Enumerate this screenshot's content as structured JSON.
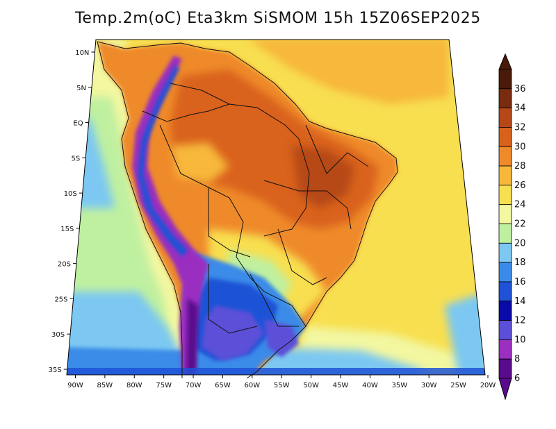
{
  "title": "Temp.2m(oC) Eta3km SiSMOM 15h 15Z06SEP2025",
  "map": {
    "lon_range": [
      -91,
      -20
    ],
    "lat_range": [
      -38,
      12
    ],
    "lon_ticks": [
      {
        "v": -90,
        "label": "90W"
      },
      {
        "v": -85,
        "label": "85W"
      },
      {
        "v": -80,
        "label": "80W"
      },
      {
        "v": -75,
        "label": "75W"
      },
      {
        "v": -70,
        "label": "70W"
      },
      {
        "v": -65,
        "label": "65W"
      },
      {
        "v": -60,
        "label": "60W"
      },
      {
        "v": -55,
        "label": "55W"
      },
      {
        "v": -50,
        "label": "50W"
      },
      {
        "v": -45,
        "label": "45W"
      },
      {
        "v": -40,
        "label": "40W"
      },
      {
        "v": -35,
        "label": "35W"
      },
      {
        "v": -30,
        "label": "30W"
      },
      {
        "v": -25,
        "label": "25W"
      },
      {
        "v": -20,
        "label": "20W"
      }
    ],
    "lat_ticks": [
      {
        "v": 10,
        "label": "10N"
      },
      {
        "v": 5,
        "label": "5N"
      },
      {
        "v": 0,
        "label": "EQ"
      },
      {
        "v": -5,
        "label": "5S"
      },
      {
        "v": -10,
        "label": "10S"
      },
      {
        "v": -15,
        "label": "15S"
      },
      {
        "v": -20,
        "label": "20S"
      },
      {
        "v": -25,
        "label": "25S"
      },
      {
        "v": -30,
        "label": "30S"
      },
      {
        "v": -35,
        "label": "35S"
      }
    ]
  },
  "colorbar": {
    "levels": [
      {
        "label": "6",
        "color": "#5a0a8c"
      },
      {
        "label": "8",
        "color": "#9a2fc0"
      },
      {
        "label": "10",
        "color": "#5b4fd8"
      },
      {
        "label": "12",
        "color": "#0a0aa8"
      },
      {
        "label": "14",
        "color": "#1f52d6"
      },
      {
        "label": "16",
        "color": "#3a8be8"
      },
      {
        "label": "18",
        "color": "#7cc8f2"
      },
      {
        "label": "20",
        "color": "#bff0a0"
      },
      {
        "label": "22",
        "color": "#f2f7a0"
      },
      {
        "label": "24",
        "color": "#f8df50"
      },
      {
        "label": "26",
        "color": "#f7b83a"
      },
      {
        "label": "28",
        "color": "#ef8a2a"
      },
      {
        "label": "30",
        "color": "#d9621a"
      },
      {
        "label": "32",
        "color": "#b64818"
      },
      {
        "label": "34",
        "color": "#7a2c10"
      },
      {
        "label": "36",
        "color": "#4a1a08"
      }
    ]
  }
}
